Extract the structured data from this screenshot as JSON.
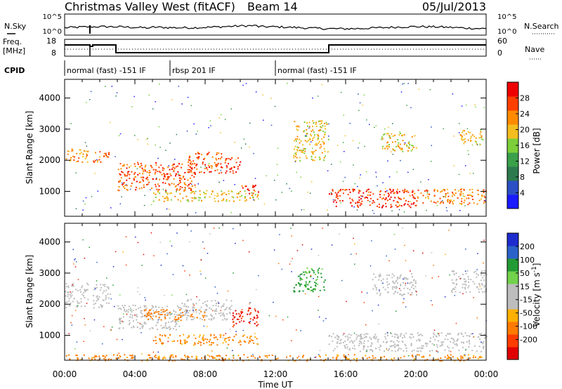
{
  "header": {
    "station": "Christmas Valley West (fitACF)",
    "beam": "Beam 14",
    "date": "05/Jul/2013"
  },
  "noise_panel": {
    "left_label": "N.Sky",
    "right_label": "N.Search",
    "left_ticks": [
      "10^5",
      "10^0"
    ],
    "right_ticks": [
      "10^5",
      "10^0"
    ]
  },
  "freq_panel": {
    "left_label_1": "Freq.",
    "left_label_2": "[MHz]",
    "right_label": "Nave",
    "left_ticks": [
      "18",
      "8"
    ],
    "right_ticks": [
      "60",
      "0"
    ]
  },
  "cpid_panel": {
    "label": "CPID",
    "segments": [
      {
        "label": "normal (fast) -151 IF",
        "start_hour": 0,
        "end_hour": 6
      },
      {
        "label": "rbsp 201 IF",
        "start_hour": 6,
        "end_hour": 12
      },
      {
        "label": "normal (fast) -151 IF",
        "start_hour": 12,
        "end_hour": 24
      }
    ]
  },
  "colors": {
    "power_scale": [
      "#1a1aff",
      "#2b4fc4",
      "#2c7a4e",
      "#3aa04a",
      "#7ccf3a",
      "#f3bd1f",
      "#ff8a00",
      "#ff3f00",
      "#ee0000"
    ],
    "velocity_scale": [
      "#1e2ccf",
      "#2b62c9",
      "#239b34",
      "#72d24b",
      "#bdbdbd",
      "#bdbdbd",
      "#ffb000",
      "#ff7a00",
      "#ff3c00",
      "#e00000"
    ]
  },
  "chart_data": [
    {
      "type": "heatmap",
      "name": "power",
      "ylabel": "Slant Range [km]",
      "xlabel": "Time UT",
      "xlim": [
        0,
        24
      ],
      "ylim": [
        200,
        4600
      ],
      "x_ticks": [
        "00:00",
        "04:00",
        "08:00",
        "12:00",
        "16:00",
        "20:00",
        "00:00"
      ],
      "y_ticks": [
        1000,
        2000,
        3000,
        4000
      ],
      "colorbar_label": "Power [dB]",
      "colorbar_ticks": [
        4,
        8,
        12,
        16,
        20,
        24,
        28
      ],
      "colorbar_range": [
        0,
        32
      ],
      "features": [
        {
          "t0": 0.0,
          "t1": 1.3,
          "r0": 1950,
          "r1": 2400,
          "v": 22
        },
        {
          "t0": 1.6,
          "t1": 2.5,
          "r0": 1950,
          "r1": 2350,
          "v": 24
        },
        {
          "t0": 3.0,
          "t1": 7.5,
          "r0": 1050,
          "r1": 1950,
          "v": 26
        },
        {
          "t0": 7.0,
          "t1": 9.0,
          "r0": 1600,
          "r1": 2300,
          "v": 26
        },
        {
          "t0": 9.0,
          "t1": 10.0,
          "r0": 1600,
          "r1": 2100,
          "v": 28
        },
        {
          "t0": 10.0,
          "t1": 11.0,
          "r0": 950,
          "r1": 1250,
          "v": 28
        },
        {
          "t0": 5.0,
          "t1": 11.0,
          "r0": 700,
          "r1": 1050,
          "v": 20
        },
        {
          "t0": 13.0,
          "t1": 15.0,
          "r0": 2000,
          "r1": 3300,
          "v": 20
        },
        {
          "t0": 15.0,
          "t1": 20.0,
          "r0": 500,
          "r1": 1100,
          "v": 28
        },
        {
          "t0": 20.0,
          "t1": 24.0,
          "r0": 600,
          "r1": 1100,
          "v": 24
        },
        {
          "t0": 18.0,
          "t1": 20.0,
          "r0": 2300,
          "r1": 2900,
          "v": 20
        },
        {
          "t0": 22.5,
          "t1": 23.8,
          "r0": 2500,
          "r1": 3000,
          "v": 20
        }
      ]
    },
    {
      "type": "heatmap",
      "name": "velocity",
      "ylabel": "Slant Range [km]",
      "xlabel": "Time UT",
      "xlim": [
        0,
        24
      ],
      "ylim": [
        200,
        4600
      ],
      "x_ticks": [
        "00:00",
        "04:00",
        "08:00",
        "12:00",
        "16:00",
        "20:00",
        "00:00"
      ],
      "y_ticks": [
        1000,
        2000,
        3000,
        4000
      ],
      "colorbar_label": "Velocity [m s^-1]",
      "colorbar_ticks": [
        200,
        100,
        50,
        15,
        -15,
        -50,
        -100,
        -200
      ],
      "features": [
        {
          "t0": 0.0,
          "t1": 1.3,
          "r0": 1900,
          "r1": 2700,
          "v": 0
        },
        {
          "t0": 1.6,
          "t1": 2.6,
          "r0": 1900,
          "r1": 2700,
          "v": 0
        },
        {
          "t0": 3.0,
          "t1": 6.5,
          "r0": 1200,
          "r1": 2000,
          "v": 0
        },
        {
          "t0": 6.5,
          "t1": 9.5,
          "r0": 1500,
          "r1": 2200,
          "v": 0
        },
        {
          "t0": 9.5,
          "t1": 11.0,
          "r0": 1300,
          "r1": 1900,
          "v": -150
        },
        {
          "t0": 4.5,
          "t1": 8.0,
          "r0": 1500,
          "r1": 1850,
          "v": -60
        },
        {
          "t0": 5.0,
          "t1": 11.0,
          "r0": 700,
          "r1": 1050,
          "v": -40
        },
        {
          "t0": 0.0,
          "t1": 24.0,
          "r0": 200,
          "r1": 400,
          "v": -40
        },
        {
          "t0": 13.0,
          "t1": 14.8,
          "r0": 2400,
          "r1": 3200,
          "v": 40
        },
        {
          "t0": 15.0,
          "t1": 24.0,
          "r0": 500,
          "r1": 1100,
          "v": 0
        },
        {
          "t0": 17.5,
          "t1": 20.0,
          "r0": 2300,
          "r1": 3000,
          "v": 0
        },
        {
          "t0": 22.0,
          "t1": 24.0,
          "r0": 2400,
          "r1": 3100,
          "v": 0
        }
      ]
    }
  ]
}
